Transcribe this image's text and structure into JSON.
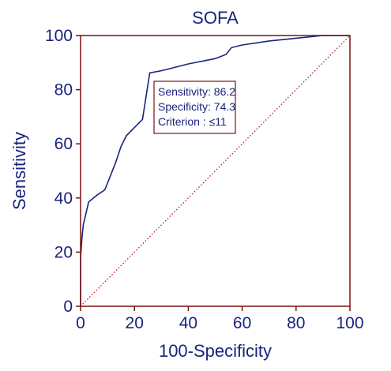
{
  "chart_data": {
    "type": "line",
    "title": "SOFA",
    "xlabel": "100-Specificity",
    "ylabel": "Sensitivity",
    "xlim": [
      0,
      100
    ],
    "ylim": [
      0,
      100
    ],
    "xticks": [
      0,
      20,
      40,
      60,
      80,
      100
    ],
    "yticks": [
      0,
      20,
      40,
      60,
      80,
      100
    ],
    "grid": false,
    "series": [
      {
        "style": "roc-curve",
        "color": "#1a237e",
        "x": [
          0,
          0,
          0.5,
          1,
          3,
          6,
          9,
          11,
          13,
          15,
          17,
          20,
          23,
          25.7,
          30,
          40,
          50,
          54,
          56,
          60,
          70,
          80,
          90,
          100
        ],
        "y": [
          0,
          18,
          25,
          30,
          38.5,
          41,
          43,
          48,
          53,
          59,
          63,
          66,
          69,
          86.2,
          87,
          89.5,
          91.5,
          93,
          95.5,
          96.5,
          98,
          99,
          100,
          100
        ]
      },
      {
        "style": "diagonal-reference",
        "color": "#b71c1c",
        "x": [
          0,
          100
        ],
        "y": [
          0,
          100
        ]
      }
    ],
    "annotation": {
      "lines": [
        "Sensitivity: 86.2",
        "Specificity: 74.3",
        "Criterion : ≤11"
      ],
      "border_color": "#7b1111"
    },
    "frame_color": "#7b1111"
  }
}
